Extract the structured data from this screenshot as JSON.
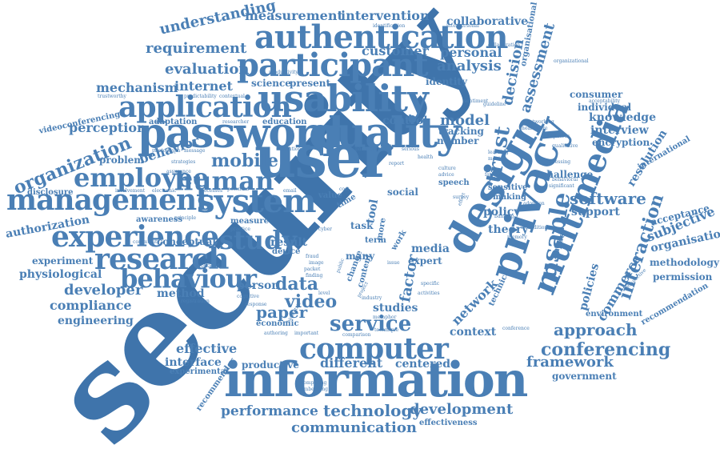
{
  "words": {
    "security": "security",
    "information": "information",
    "user": "user",
    "password": "password",
    "quality": "quality",
    "design": "design",
    "privacy": "privacy",
    "usability": "usability",
    "authentication": "authentication",
    "participant": "participant",
    "application": "application",
    "system": "system",
    "management": "management",
    "experience": "experience",
    "research": "research",
    "behaviour": "behaviour",
    "computer": "computer",
    "multimedia": "multimedia",
    "study": "study",
    "employee": "employee",
    "human": "human",
    "organization": "organization",
    "service": "service",
    "conferencing": "conferencing",
    "performance": "performance",
    "technology": "technology",
    "development": "development",
    "communication": "communication",
    "software": "software",
    "approach": "approach",
    "interaction": "interaction",
    "trust": "trust",
    "usable": "usable",
    "decision": "decision",
    "assessment": "assessment",
    "commerce": "commerce",
    "policies": "policies",
    "framework": "framework",
    "government": "government",
    "evaluation": "evaluation",
    "requirement": "requirement",
    "understanding": "understanding",
    "measurement": "measurement",
    "intervention": "intervention",
    "collaborative": "collaborative",
    "customer": "customer",
    "analysis": "analysis",
    "personal": "personal",
    "mechanism": "mechanism",
    "internet": "internet",
    "science": "science",
    "present": "present",
    "identity": "identity",
    "perception": "perception",
    "mobile": "mobile",
    "behavior": "behavior",
    "model": "model",
    "control": "control",
    "tracking": "tracking",
    "number": "number",
    "problem": "problem",
    "authorization": "authorization",
    "disclosure": "disclosure",
    "experiment": "experiment",
    "physiological": "physiological",
    "developer": "developer",
    "method": "method",
    "compliance": "compliance",
    "engineering": "engineering",
    "effective": "effective",
    "interface": "interface",
    "experimental": "experimental",
    "data": "data",
    "video": "video",
    "paper": "paper",
    "person": "person",
    "result": "result",
    "conceptual": "conceptual",
    "productive": "productive",
    "different": "different",
    "centered": "centered",
    "studies": "studies",
    "context": "context",
    "network": "network",
    "factor": "factor",
    "media": "media",
    "expert": "expert",
    "policy": "policy",
    "theory": "theory",
    "support": "support",
    "consumer": "consumer",
    "knowledge": "knowledge",
    "interview": "interview",
    "encryption": "encryption",
    "resolution": "resolution",
    "acceptance": "acceptance",
    "subjective": "subjective",
    "organisation": "organisation",
    "methodology": "methodology",
    "permission": "permission",
    "environment": "environment",
    "effectiveness": "effectiveness",
    "organizational": "organizational",
    "organisational": "organisational",
    "videoconferencing": "videoconferencing",
    "adaptation": "adaptation",
    "contextual": "contextual",
    "researcher": "researcher",
    "education": "education",
    "individual": "individual",
    "challenge": "challenge",
    "international": "international",
    "recommendation": "recommendation",
    "recommender": "recommender",
    "social": "social",
    "task": "task",
    "many": "many",
    "term": "term",
    "speech": "speech",
    "sensitive": "sensitive",
    "making": "making",
    "banking": "banking",
    "technical": "technical",
    "impact": "impact",
    "economic": "economic",
    "cognitive": "cognitive",
    "response": "response",
    "industry": "industry",
    "activities": "activities",
    "specific": "specific",
    "awareness": "awareness",
    "measure": "measure",
    "practice": "practice",
    "potential": "potential",
    "electronic": "electronic",
    "processes": "processes",
    "email": "email",
    "device": "device",
    "more": "more",
    "tool": "tool",
    "public": "public",
    "change": "change",
    "content": "content",
    "project": "project",
    "work": "work",
    "issue": "issue",
    "value": "value",
    "time": "time",
    "cost": "cost",
    "current": "current",
    "serious": "serious",
    "health": "health",
    "report": "report",
    "advice": "advice",
    "survey": "survey",
    "culture": "culture",
    "effort": "effort",
    "condition": "condition",
    "guideline": "guideline",
    "networking": "networking",
    "healthcare": "healthcare",
    "qualitative": "qualitative",
    "ubiquitous": "ubiquitous",
    "assessing": "assessing",
    "behavioral": "behavioral",
    "significant": "significant",
    "acceptability": "acceptability",
    "trustworthy": "trustworthy",
    "predictability": "predictability",
    "productivity": "productivity",
    "identification": "identification",
    "interpersonal": "interpersonal",
    "collaboration": "collaboration",
    "sentiment": "sentiment",
    "photograph": "photograph",
    "message": "message",
    "strategies": "strategies",
    "assurance": "assurance",
    "involvement": "involvement",
    "principle": "principle",
    "community": "community",
    "cryptographic": "cryptographic",
    "workload": "workload",
    "registration": "registration",
    "solution": "solution",
    "direction": "direction",
    "photo": "photo",
    "technique": "technique",
    "comparison": "comparison",
    "important": "important",
    "authoring": "authoring",
    "metaphor": "metaphor",
    "biometric": "biometric",
    "computing": "computing",
    "embedding": "embedding",
    "perspective": "perspective",
    "adoption": "adoption",
    "conference": "conference",
    "hardware": "hardware",
    "requires": "requires",
    "exposure": "exposure",
    "finding": "finding",
    "packet": "packet",
    "fraud": "fraud",
    "image": "image",
    "level": "level",
    "cyber": "cyber",
    "ethics": "ethics",
    "matters": "matters",
    "risk": "risk",
    "proposed": "proposed",
    "phishing": "phishing",
    "fatigue": "fatigue",
    "learning": "learning",
    "mental": "mental",
    "memory": "memory",
    "usage": "usage",
    "user_centric": "user",
    "protection": "protection",
    "access": "access",
    "attack": "attack",
    "threat": "threat"
  },
  "colors": {
    "primary": "#4a7fb5",
    "light": "#6b97c4",
    "dark": "#3f74ab",
    "background": "#ffffff"
  }
}
